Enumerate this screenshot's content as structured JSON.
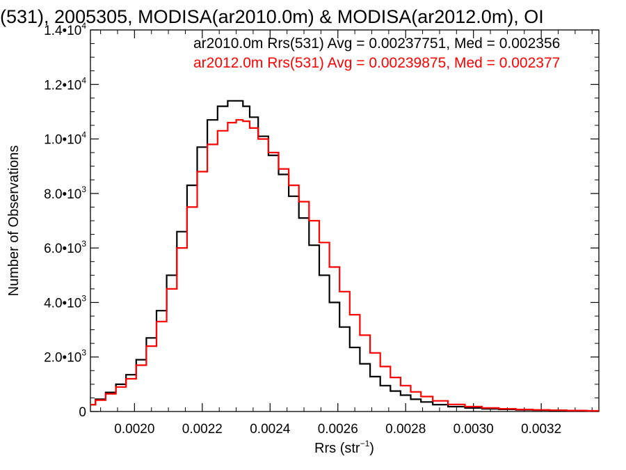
{
  "chart_data": {
    "type": "line",
    "title": "(531), 2005305, MODISA(ar2010.0m) & MODISA(ar2012.0m), OI",
    "xlabel_main": "Rrs (str",
    "xlabel_sup": "−1",
    "xlabel_end": ")",
    "ylabel": "Number of Observations",
    "xlim": [
      0.00187,
      0.00337
    ],
    "ylim": [
      0,
      14000
    ],
    "x_ticks": [
      "0.0020",
      "0.0022",
      "0.0024",
      "0.0026",
      "0.0028",
      "0.0030",
      "0.0032"
    ],
    "x_tick_values": [
      0.002,
      0.0022,
      0.0024,
      0.0026,
      0.0028,
      0.003,
      0.0032
    ],
    "y_ticks": [
      {
        "value": 0,
        "mant": "0",
        "exp": ""
      },
      {
        "value": 2000,
        "mant": "2.0•10",
        "exp": "3"
      },
      {
        "value": 4000,
        "mant": "4.0•10",
        "exp": "3"
      },
      {
        "value": 6000,
        "mant": "6.0•10",
        "exp": "3"
      },
      {
        "value": 8000,
        "mant": "8.0•10",
        "exp": "3"
      },
      {
        "value": 10000,
        "mant": "1.0•10",
        "exp": "4"
      },
      {
        "value": 12000,
        "mant": "1.2•10",
        "exp": "4"
      },
      {
        "value": 14000,
        "mant": "1.4•10",
        "exp": "4"
      }
    ],
    "series": [
      {
        "name": "ar2010.0m",
        "color": "#000000",
        "legend": "ar2010.0m Rrs(531) Avg = 0.00237751, Med = 0.002356",
        "x": [
          0.00187,
          0.0019,
          0.00193,
          0.00196,
          0.00199,
          0.00202,
          0.00205,
          0.00208,
          0.00211,
          0.00214,
          0.00217,
          0.0022,
          0.00223,
          0.00226,
          0.00229,
          0.00231,
          0.00233,
          0.00235,
          0.00238,
          0.00241,
          0.00244,
          0.00247,
          0.0025,
          0.00253,
          0.00256,
          0.00259,
          0.00262,
          0.00265,
          0.00268,
          0.00271,
          0.00274,
          0.00277,
          0.0028,
          0.00283,
          0.00286,
          0.0029,
          0.00295,
          0.003,
          0.00305,
          0.0031,
          0.00315,
          0.0032,
          0.00325,
          0.0033,
          0.00337
        ],
        "y": [
          250,
          450,
          700,
          1000,
          1350,
          1900,
          2700,
          3700,
          5000,
          6600,
          8300,
          9700,
          10700,
          11200,
          11400,
          11400,
          11200,
          10800,
          10100,
          9400,
          8700,
          7900,
          7100,
          6100,
          5000,
          4000,
          3100,
          2350,
          1750,
          1280,
          950,
          750,
          600,
          450,
          350,
          250,
          180,
          130,
          100,
          80,
          60,
          50,
          40,
          30,
          20
        ]
      },
      {
        "name": "ar2012.0m",
        "color": "#ff0000",
        "legend": "ar2012.0m Rrs(531) Avg = 0.00239875, Med = 0.002377",
        "x": [
          0.00187,
          0.0019,
          0.00193,
          0.00196,
          0.00199,
          0.00202,
          0.00205,
          0.00208,
          0.00211,
          0.00214,
          0.00217,
          0.0022,
          0.00223,
          0.00226,
          0.00229,
          0.00231,
          0.00233,
          0.00235,
          0.00238,
          0.00241,
          0.00244,
          0.00247,
          0.0025,
          0.00253,
          0.00256,
          0.00259,
          0.00262,
          0.00265,
          0.00268,
          0.00271,
          0.00274,
          0.00277,
          0.0028,
          0.00283,
          0.00286,
          0.0029,
          0.00295,
          0.003,
          0.00305,
          0.0031,
          0.00315,
          0.0032,
          0.00325,
          0.0033,
          0.00337
        ],
        "y": [
          250,
          420,
          650,
          900,
          1200,
          1700,
          2400,
          3300,
          4500,
          6000,
          7500,
          8800,
          9800,
          10300,
          10600,
          10700,
          10650,
          10400,
          10000,
          9500,
          8900,
          8300,
          7700,
          7000,
          6200,
          5300,
          4400,
          3550,
          2800,
          2150,
          1650,
          1250,
          950,
          720,
          550,
          390,
          260,
          180,
          130,
          100,
          75,
          60,
          45,
          35,
          25
        ]
      }
    ],
    "grid": false,
    "legend_position": "top-right"
  }
}
